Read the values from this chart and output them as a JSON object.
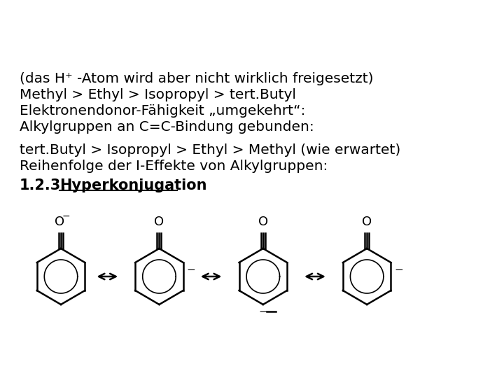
{
  "background_color": "#ffffff",
  "title_text": "1.2.3.  Hyperkonjugation",
  "line1": "Reihenfolge der I-Effekte von Alkylgruppen:",
  "line2": "tert.Butyl > Isopropyl > Ethyl > Methyl (wie erwartet)",
  "line3": "",
  "line4": "Alkylgruppen an C=C-Bindung gebunden:",
  "line5": "Elektronendonor-Fähigkeit „umgekehrt“:",
  "line6": "Methyl > Ethyl > Isopropyl > tert.Butyl",
  "line7": "(das H⁺ -Atom wird aber nicht wirklich freigesetzt)",
  "text_color": "#000000",
  "title_fontsize": 15,
  "body_fontsize": 14.5,
  "figsize": [
    7.2,
    5.4
  ],
  "dpi": 100
}
